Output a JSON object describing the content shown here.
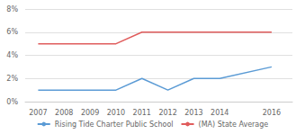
{
  "chart_data": {
    "type": "line",
    "x": [
      2007,
      2008,
      2009,
      2010,
      2011,
      2012,
      2013,
      2014,
      2016
    ],
    "series": [
      {
        "name": "Rising Tide Charter Public School",
        "color": "#5b9bd5",
        "values": [
          1.0,
          1.0,
          1.0,
          1.0,
          2.0,
          1.0,
          2.0,
          2.0,
          3.0
        ]
      },
      {
        "name": "(MA) State Average",
        "color": "#e05c5c",
        "values": [
          5.0,
          5.0,
          5.0,
          5.0,
          6.0,
          6.0,
          6.0,
          6.0,
          6.0
        ]
      }
    ],
    "xlim": [
      2006.5,
      2016.8
    ],
    "xticks": [
      2007,
      2008,
      2009,
      2010,
      2011,
      2012,
      2013,
      2014,
      2016
    ],
    "ylim": [
      0,
      8
    ],
    "yticks": [
      {
        "value": 0,
        "label": "0%"
      },
      {
        "value": 2,
        "label": "2%"
      },
      {
        "value": 4,
        "label": "4%"
      },
      {
        "value": 6,
        "label": "6%"
      },
      {
        "value": 8,
        "label": "8%"
      }
    ],
    "grid": "y",
    "legend": "bottom"
  }
}
